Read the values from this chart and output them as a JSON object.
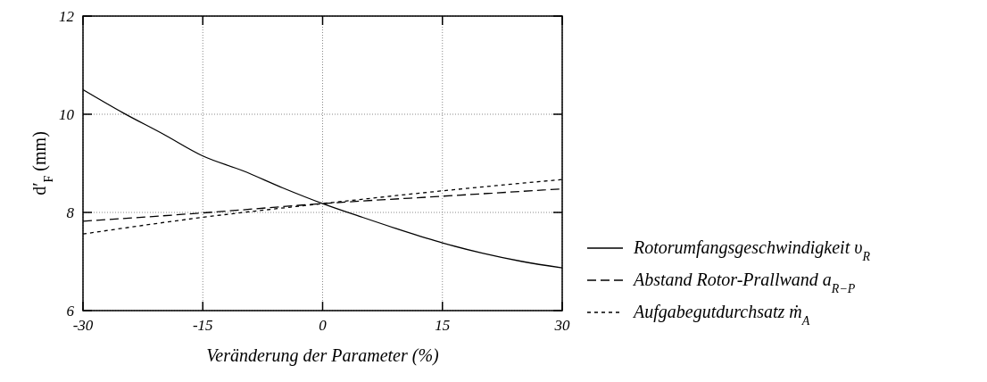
{
  "chart_data": {
    "type": "line",
    "xlabel": "Veränderung der Parameter (%)",
    "ylabel": "d′$_{F}$ (mm)",
    "xlim": [
      -30,
      30
    ],
    "ylim": [
      6,
      12
    ],
    "xticks": [
      -30,
      -15,
      0,
      15,
      30
    ],
    "yticks": [
      6,
      8,
      10,
      12
    ],
    "grid": true,
    "legend": "right",
    "series": [
      {
        "name": "Rotorumfangsgeschwindigkeit υ$_{R}$",
        "color": "#000000",
        "line_style": "solid",
        "x": [
          -30,
          -25,
          -20,
          -15,
          -10,
          -5,
          0,
          5,
          10,
          15,
          20,
          25,
          30
        ],
        "values": [
          10.5,
          10.03,
          9.6,
          9.15,
          8.85,
          8.5,
          8.18,
          7.9,
          7.63,
          7.38,
          7.17,
          7.0,
          6.87
        ]
      },
      {
        "name": "Abstand Rotor-Prallwand a$_{R−P}$",
        "color": "#000000",
        "line_style": "dashed",
        "x": [
          -30,
          -15,
          0,
          15,
          30
        ],
        "values": [
          7.82,
          7.99,
          8.18,
          8.33,
          8.48
        ]
      },
      {
        "name": "Aufgabegutdurchsatz ṁ$_{A}$",
        "color": "#000000",
        "line_style": "dotted",
        "x": [
          -30,
          -15,
          0,
          15,
          30
        ],
        "values": [
          7.56,
          7.9,
          8.18,
          8.44,
          8.67
        ]
      }
    ]
  }
}
